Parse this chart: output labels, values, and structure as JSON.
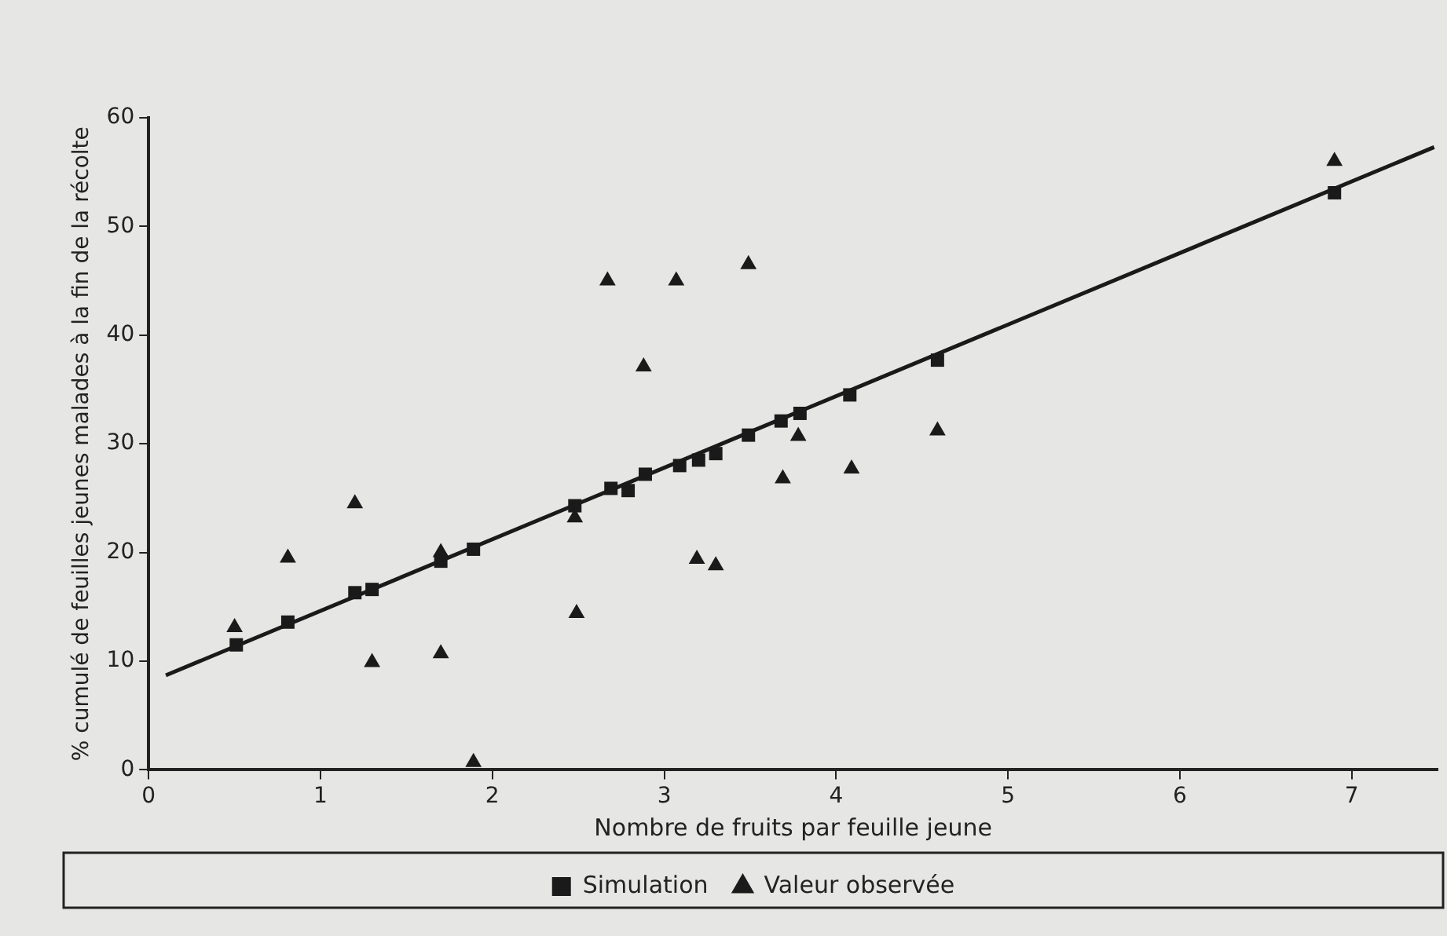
{
  "chart_data": {
    "type": "scatter",
    "xlabel": "Nombre de fruits par feuille jeune",
    "ylabel": "% cumulé de feuilles jeunes malades à la fin de la récolte",
    "xlim": [
      0,
      7.5
    ],
    "xticks": [
      0,
      1,
      2,
      3,
      4,
      5,
      6,
      7
    ],
    "ylim": [
      0,
      60
    ],
    "yticks": [
      0,
      10,
      20,
      30,
      40,
      50,
      60
    ],
    "grid": false,
    "legend": "bottom",
    "series": [
      {
        "type": "line",
        "color": "#1a1a1a",
        "marker": "none",
        "x": [
          0.1,
          7.48
        ],
        "values": [
          8.7,
          57.3
        ]
      },
      {
        "name": "Simulation",
        "color": "#1a1a1a",
        "marker": "square",
        "x": [
          0.51,
          0.81,
          1.2,
          1.3,
          1.7,
          1.89,
          2.48,
          2.69,
          2.79,
          2.89,
          3.09,
          3.2,
          3.3,
          3.49,
          3.68,
          3.79,
          4.08,
          4.59,
          6.9
        ],
        "values": [
          11.5,
          13.6,
          16.3,
          16.6,
          19.2,
          20.3,
          24.3,
          25.9,
          25.7,
          27.2,
          28.0,
          28.5,
          29.1,
          30.8,
          32.1,
          32.8,
          34.5,
          37.7,
          53.1
        ]
      },
      {
        "name": "Valeur observée",
        "color": "#1a1a1a",
        "marker": "triangle",
        "x": [
          0.5,
          0.81,
          1.2,
          1.3,
          1.7,
          1.7,
          1.89,
          2.48,
          2.49,
          2.67,
          2.88,
          3.07,
          3.19,
          3.3,
          3.49,
          3.78,
          3.69,
          4.09,
          4.59,
          6.9
        ],
        "values": [
          13.1,
          19.5,
          24.5,
          9.9,
          20.0,
          10.7,
          0.7,
          23.2,
          14.4,
          45.0,
          37.1,
          45.0,
          19.4,
          18.8,
          46.5,
          30.7,
          26.8,
          27.7,
          31.2,
          56.0
        ]
      }
    ]
  }
}
